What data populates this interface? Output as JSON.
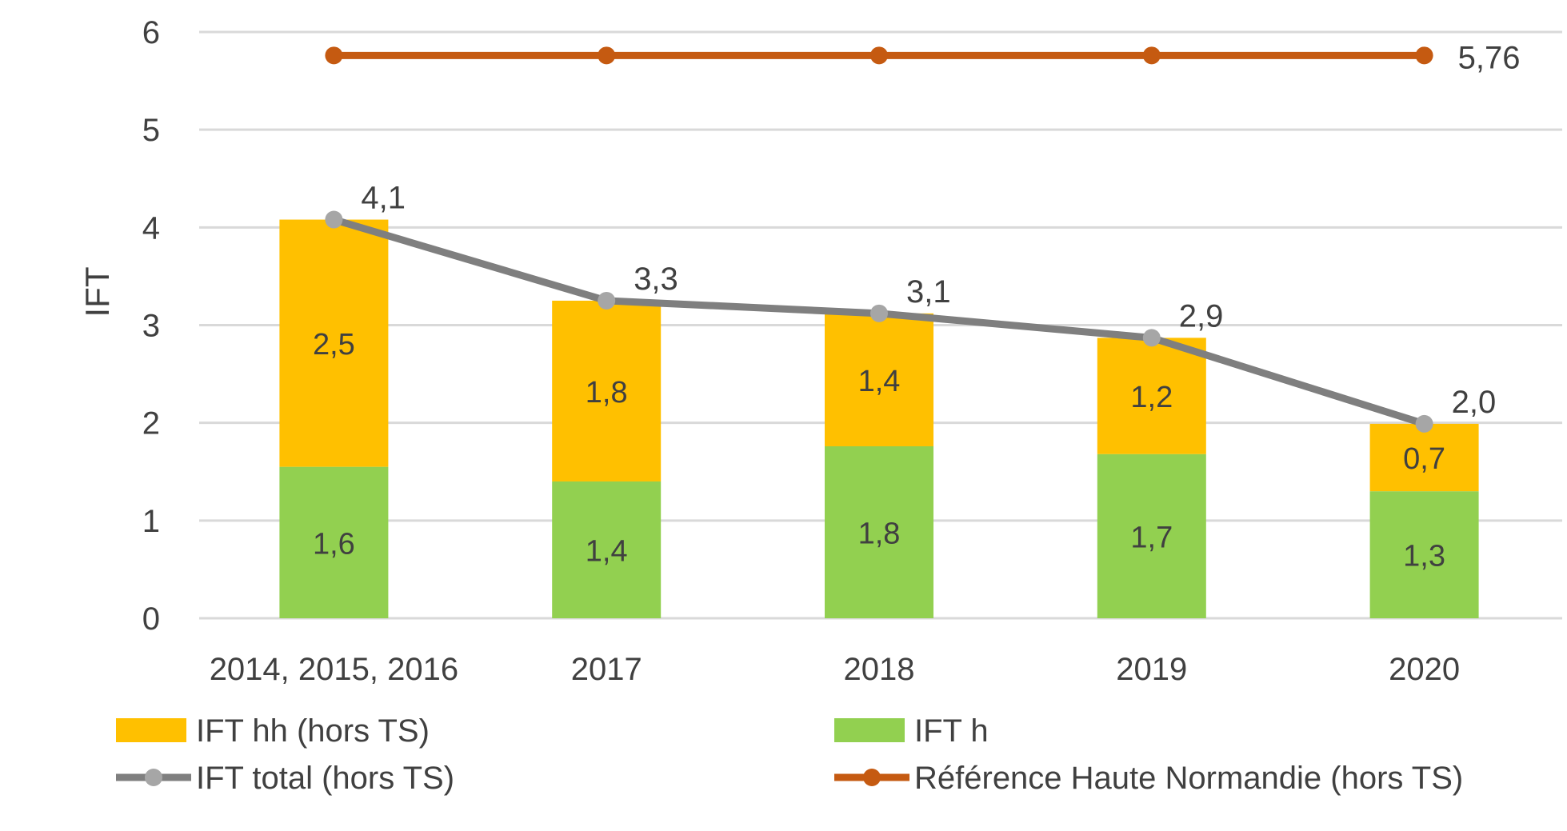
{
  "chart_data": {
    "type": "bar",
    "stacked": true,
    "title": "",
    "xlabel": "",
    "ylabel": "IFT",
    "ylim": [
      0,
      6
    ],
    "yticks": [
      "0",
      "1",
      "2",
      "3",
      "4",
      "5",
      "6"
    ],
    "grid": true,
    "legend_position": "bottom",
    "categories": [
      "2014, 2015, 2016",
      "2017",
      "2018",
      "2019",
      "2020"
    ],
    "series": [
      {
        "name": "IFT h",
        "kind": "bar",
        "color": "#92d050",
        "values": [
          1.55,
          1.4,
          1.76,
          1.68,
          1.3
        ],
        "labels": [
          "1,6",
          "1,4",
          "1,8",
          "1,7",
          "1,3"
        ]
      },
      {
        "name": "IFT hh (hors TS)",
        "kind": "bar",
        "color": "#ffc000",
        "values": [
          2.53,
          1.85,
          1.36,
          1.19,
          0.69
        ],
        "labels": [
          "2,5",
          "1,8",
          "1,4",
          "1,2",
          "0,7"
        ]
      },
      {
        "name": "IFT total (hors TS)",
        "kind": "line",
        "color": "#7f7f7f",
        "marker_color": "#a6a6a6",
        "values": [
          4.08,
          3.25,
          3.12,
          2.87,
          1.99
        ],
        "labels": [
          "4,1",
          "3,3",
          "3,1",
          "2,9",
          "2,0"
        ]
      },
      {
        "name": "Référence Haute Normandie (hors TS)",
        "kind": "line",
        "color": "#c55a11",
        "values": [
          5.76,
          5.76,
          5.76,
          5.76,
          5.76
        ],
        "labels": [
          "",
          "",
          "",
          "",
          "5,76"
        ]
      }
    ],
    "legend": [
      "IFT hh (hors TS)",
      "IFT h",
      "IFT total (hors TS)",
      "Référence Haute Normandie (hors TS)"
    ]
  }
}
